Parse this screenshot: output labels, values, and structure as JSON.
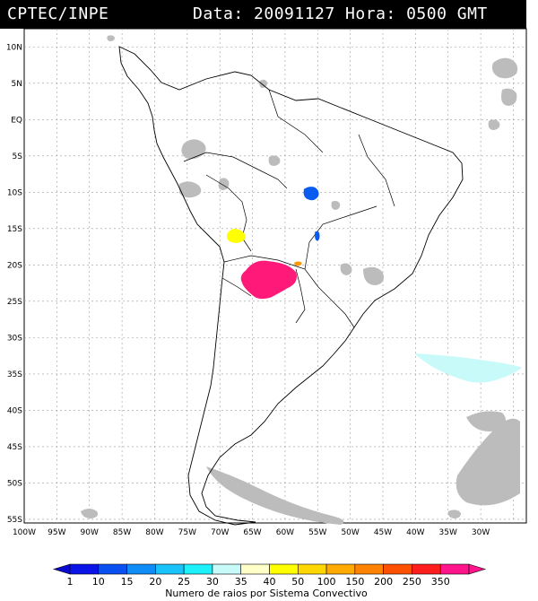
{
  "header": {
    "source": "CPTEC/INPE",
    "datetime": "Data: 20091127 Hora: 0500 GMT"
  },
  "map": {
    "lat_labels": [
      "10N",
      "5N",
      "EQ",
      "5S",
      "10S",
      "15S",
      "20S",
      "25S",
      "30S",
      "35S",
      "40S",
      "45S",
      "50S",
      "55S"
    ],
    "lon_labels": [
      "100W",
      "95W",
      "90W",
      "85W",
      "80W",
      "75W",
      "70W",
      "65W",
      "60W",
      "55W",
      "50W",
      "45W",
      "40W",
      "35W",
      "30W"
    ],
    "systems": [
      {
        "name": "yellow-cell",
        "color": "#ffff00",
        "lon": -67.5,
        "lat": -16.3
      },
      {
        "name": "magenta-cell",
        "color": "#ff1a7a",
        "lon": -63.0,
        "lat": -22.0
      },
      {
        "name": "blue-cell-1",
        "color": "#0a5cf0",
        "lon": -56.0,
        "lat": -10.3
      },
      {
        "name": "blue-cell-2",
        "color": "#0a5cf0",
        "lon": -55.0,
        "lat": -16.2
      },
      {
        "name": "orange-cell",
        "color": "#ff9900",
        "lon": -58.0,
        "lat": -19.9
      }
    ]
  },
  "colorbar": {
    "labels": [
      "1",
      "10",
      "15",
      "20",
      "25",
      "30",
      "35",
      "40",
      "50",
      "100",
      "150",
      "200",
      "250",
      "350"
    ],
    "colors": [
      "#0a14e6",
      "#0a4ff0",
      "#0f8cf5",
      "#19c3fa",
      "#1ef0fa",
      "#c8fafa",
      "#ffffc8",
      "#ffff00",
      "#ffd700",
      "#ffaa00",
      "#ff8200",
      "#ff5000",
      "#ff1e1e",
      "#ff148c"
    ],
    "title": "Numero de raios por Sistema Convectivo"
  }
}
